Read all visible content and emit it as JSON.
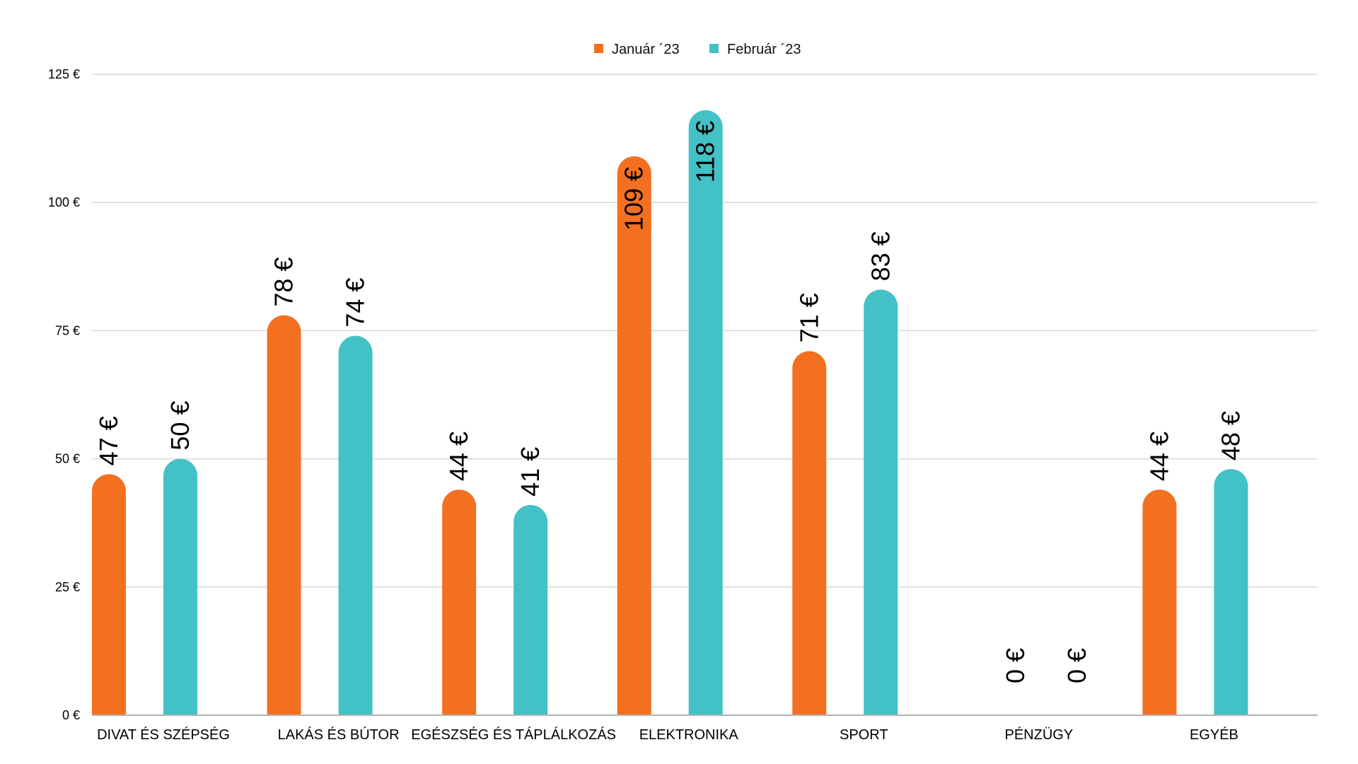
{
  "chart_data": {
    "type": "bar",
    "title": "",
    "xlabel": "",
    "ylabel": "",
    "ylim": [
      0,
      125
    ],
    "yticks": [
      0,
      25,
      50,
      75,
      100,
      125
    ],
    "ytick_labels": [
      "0 €",
      "25 €",
      "50 €",
      "75 €",
      "100 €",
      "125 €"
    ],
    "grid": true,
    "legend_position": "top-center",
    "categories": [
      "DIVAT ÉS SZÉPSÉG",
      "LAKÁS ÉS BÚTOR",
      "EGÉSZSÉG ÉS TÁPLÁLKOZÁS",
      "ELEKTRONIKA",
      "SPORT",
      "PÉNZÜGY",
      "EGYÉB"
    ],
    "series": [
      {
        "name": "Január ´23",
        "color": "#F37021",
        "values": [
          47,
          78,
          44,
          109,
          71,
          0,
          44
        ],
        "labels": [
          "47 €",
          "78 €",
          "44 €",
          "109 €",
          "71 €",
          "0 €",
          "44 €"
        ]
      },
      {
        "name": "Február ´23",
        "color": "#42C1C6",
        "values": [
          50,
          74,
          41,
          118,
          83,
          0,
          48
        ],
        "labels": [
          "50 €",
          "74 €",
          "41 €",
          "118 €",
          "83 €",
          "0 €",
          "48 €"
        ]
      }
    ]
  }
}
